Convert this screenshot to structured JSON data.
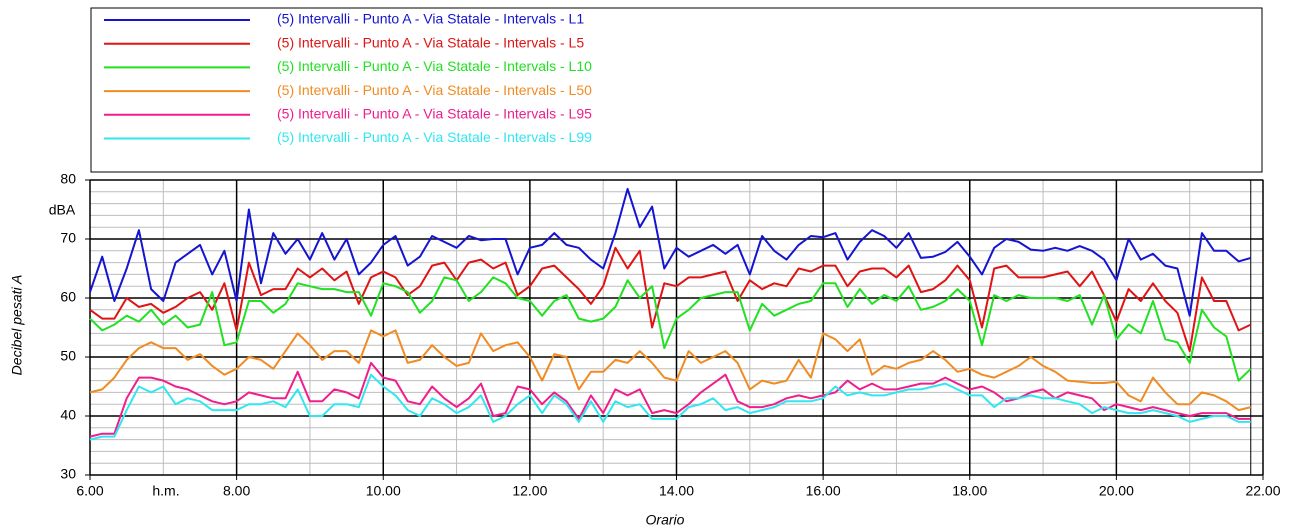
{
  "chart_data": {
    "type": "line",
    "y_label": "Decibel pesati A",
    "x_label": "Orario",
    "y_unit": "dBA",
    "x_unit": "h.m.",
    "xlim": [
      6,
      22
    ],
    "xticks": [
      {
        "value": 6,
        "label": "6.00"
      },
      {
        "value": 8,
        "label": "8.00"
      },
      {
        "value": 10,
        "label": "10.00"
      },
      {
        "value": 12,
        "label": "12.00"
      },
      {
        "value": 14,
        "label": "14.00"
      },
      {
        "value": 16,
        "label": "16.00"
      },
      {
        "value": 18,
        "label": "18.00"
      },
      {
        "value": 20,
        "label": "20.00"
      },
      {
        "value": 22,
        "label": "22.00"
      }
    ],
    "ylim": [
      30,
      80
    ],
    "yticks": [
      30,
      40,
      50,
      60,
      70,
      80
    ],
    "grid": true,
    "legend": "top",
    "x": [
      6,
      6.167,
      6.333,
      6.5,
      6.667,
      6.833,
      7,
      7.167,
      7.333,
      7.5,
      7.667,
      7.833,
      8,
      8.167,
      8.333,
      8.5,
      8.667,
      8.833,
      9,
      9.167,
      9.333,
      9.5,
      9.667,
      9.833,
      10,
      10.167,
      10.333,
      10.5,
      10.667,
      10.833,
      11,
      11.167,
      11.333,
      11.5,
      11.667,
      11.833,
      12,
      12.167,
      12.333,
      12.5,
      12.667,
      12.833,
      13,
      13.167,
      13.333,
      13.5,
      13.667,
      13.833,
      14,
      14.167,
      14.333,
      14.5,
      14.667,
      14.833,
      15,
      15.167,
      15.333,
      15.5,
      15.667,
      15.833,
      16,
      16.167,
      16.333,
      16.5,
      16.667,
      16.833,
      17,
      17.167,
      17.333,
      17.5,
      17.667,
      17.833,
      18,
      18.167,
      18.333,
      18.5,
      18.667,
      18.833,
      19,
      19.167,
      19.333,
      19.5,
      19.667,
      19.833,
      20,
      20.167,
      20.333,
      20.5,
      20.667,
      20.833,
      21,
      21.167,
      21.333,
      21.5,
      21.667,
      21.833
    ],
    "series": [
      {
        "name": "(5) Intervalli - Punto A - Via Statale - Intervals - L1",
        "color": "#1414d2",
        "values": [
          61,
          67,
          59.5,
          65,
          71.5,
          61.5,
          59.5,
          66,
          67.5,
          69,
          64,
          68,
          59.5,
          75,
          62.5,
          71,
          67.5,
          70,
          66.5,
          71,
          66.5,
          70,
          64,
          66,
          69,
          70.5,
          65.5,
          67,
          70.5,
          69.5,
          68.5,
          70.5,
          69.8,
          70,
          70,
          64,
          68.5,
          69,
          71,
          69,
          68.5,
          66.5,
          65,
          71,
          78.5,
          72,
          75.5,
          65,
          68.5,
          67,
          68,
          69,
          67.5,
          69,
          64,
          70.5,
          68,
          66.5,
          69,
          70.5,
          70.3,
          71,
          66.5,
          69.5,
          71.5,
          70.5,
          68.5,
          71,
          66.8,
          67,
          67.8,
          69.5,
          67,
          64,
          68.5,
          70,
          69.5,
          68.2,
          68,
          68.5,
          68,
          68.8,
          68,
          66.5,
          63,
          70,
          66.5,
          67.5,
          65.5,
          65,
          57,
          71,
          68,
          68,
          66.2,
          66.8
        ]
      },
      {
        "name": "(5) Intervalli - Punto A - Via Statale - Intervals - L5",
        "color": "#e01414",
        "values": [
          58,
          56.5,
          56.5,
          60,
          58.5,
          59,
          57.5,
          58.5,
          60,
          61,
          58,
          62.5,
          54.5,
          66,
          60.5,
          61.5,
          61.5,
          65,
          63.5,
          65,
          63,
          64.5,
          59,
          63.5,
          64.5,
          63.5,
          60.5,
          62,
          65.5,
          66,
          63,
          66,
          66.5,
          65,
          66,
          60.5,
          62,
          65,
          65.5,
          63.5,
          61.5,
          59,
          62,
          68.5,
          65,
          68,
          55,
          62.5,
          62,
          63.5,
          63.5,
          64,
          64.5,
          59.5,
          63,
          61.5,
          62.5,
          62,
          65,
          64.5,
          65.5,
          65.5,
          62,
          64.5,
          65,
          65,
          63.5,
          65.5,
          61,
          61.5,
          63,
          65.5,
          63,
          55,
          65,
          65.5,
          63.5,
          63.5,
          63.5,
          64,
          64.5,
          62,
          64.5,
          60.5,
          56,
          61.5,
          59.5,
          62.5,
          59.5,
          57.5,
          51,
          63.5,
          59.5,
          59.5,
          54.5,
          55.5
        ]
      },
      {
        "name": "(5) Intervalli - Punto A - Via Statale - Intervals - L10",
        "color": "#22e022",
        "values": [
          56.5,
          54.5,
          55.5,
          57,
          56,
          58,
          55.5,
          57,
          55,
          55.5,
          61,
          52,
          52.5,
          59.5,
          59.5,
          57.5,
          59,
          62.5,
          62,
          61.5,
          61.5,
          61,
          61,
          57,
          62.5,
          62,
          61,
          57.5,
          59.5,
          63.5,
          63,
          59.5,
          61,
          63.5,
          62.5,
          60,
          59.5,
          57,
          59.5,
          60.5,
          56.5,
          56,
          56.5,
          58.5,
          63,
          60,
          62,
          51.5,
          56.5,
          58,
          60,
          60.5,
          61,
          61,
          54.5,
          59,
          57,
          58,
          59,
          59.5,
          62.5,
          62.5,
          58.5,
          61.5,
          59,
          60.5,
          59.5,
          62,
          58,
          58.5,
          59.5,
          61.5,
          59.5,
          52,
          60.5,
          59.5,
          60.5,
          60,
          60,
          60,
          59.5,
          60.5,
          55.5,
          60.5,
          53,
          55.5,
          54,
          59.5,
          53,
          52.5,
          49,
          58,
          55,
          53.5,
          46,
          48
        ]
      },
      {
        "name": "(5) Intervalli - Punto A - Via Statale - Intervals - L50",
        "color": "#f08c23",
        "values": [
          44,
          44.5,
          46.5,
          49.5,
          51.5,
          52.5,
          51.5,
          51.5,
          49.5,
          50.5,
          48.5,
          47,
          48,
          50,
          49.5,
          48,
          51,
          54,
          52,
          49.5,
          51,
          51,
          49,
          54.5,
          53.5,
          54.5,
          49,
          49.5,
          52,
          50,
          48.5,
          49,
          54,
          51,
          52,
          52.5,
          50,
          46,
          50.5,
          50,
          44.5,
          47.5,
          47.5,
          49.5,
          49,
          51,
          49,
          46.5,
          46,
          51,
          49,
          50,
          51,
          49,
          44.5,
          46,
          45.5,
          46,
          49.5,
          46.5,
          54,
          53,
          51,
          53,
          47,
          48.5,
          48,
          49,
          49.5,
          51,
          49.5,
          47.5,
          48,
          47,
          46.5,
          47.5,
          48.5,
          50,
          48.5,
          47.5,
          46,
          45.8,
          45.6,
          45.6,
          45.8,
          43.5,
          42.5,
          46.5,
          44,
          42,
          42,
          44,
          43.5,
          42.5,
          41,
          41.5
        ]
      },
      {
        "name": "(5) Intervalli - Punto A - Via Statale - Intervals - L95",
        "color": "#f01e8c",
        "values": [
          36.5,
          37,
          37,
          43,
          46.5,
          46.5,
          46,
          45,
          44.5,
          43.5,
          42.5,
          42,
          42.5,
          44,
          43.5,
          43,
          43,
          47.5,
          42.5,
          42.5,
          44.5,
          44,
          43,
          49,
          46.5,
          46,
          42.5,
          42,
          45,
          43,
          41.5,
          43,
          45.5,
          40,
          40.5,
          45,
          44.5,
          42,
          44,
          42.5,
          39.5,
          43.5,
          40.5,
          44.5,
          43.5,
          44.5,
          40.5,
          41,
          40.5,
          42,
          44,
          45.5,
          47,
          42.5,
          41.5,
          41.5,
          42,
          43,
          43.5,
          43,
          43.5,
          44,
          46,
          44.5,
          45.5,
          44.5,
          44.5,
          45,
          45.5,
          45.5,
          46.5,
          45.5,
          44.5,
          45,
          44,
          42.5,
          43,
          44,
          44.5,
          43,
          44,
          43.5,
          43,
          41,
          42,
          41.5,
          41,
          41.5,
          41,
          40.5,
          40,
          40.5,
          40.5,
          40.5,
          39.5,
          39.5
        ]
      },
      {
        "name": "(5) Intervalli - Punto A - Via Statale - Intervals - L99",
        "color": "#32e6f0",
        "values": [
          36,
          36.5,
          36.5,
          41,
          45,
          44,
          45,
          42,
          43,
          42.5,
          41,
          41,
          41,
          42,
          42,
          42.5,
          41.5,
          44.5,
          40,
          40,
          42,
          42,
          41.5,
          47,
          45,
          43.5,
          41,
          40,
          43,
          42,
          40.5,
          41.5,
          43.5,
          39,
          40,
          42,
          43.5,
          40.5,
          43.5,
          42,
          39,
          42.5,
          39,
          42.5,
          41.5,
          42,
          39.5,
          39.5,
          39.5,
          41.5,
          42,
          43,
          41,
          41.5,
          40.5,
          41,
          41.5,
          42.5,
          42.5,
          42.5,
          43,
          45,
          43.5,
          44,
          43.5,
          43.5,
          44,
          44.5,
          44.5,
          45,
          45.5,
          44.5,
          43.5,
          43.5,
          41.5,
          43,
          43,
          43.5,
          43,
          43,
          42.5,
          42,
          40.5,
          41.5,
          41,
          40.5,
          40.5,
          41,
          40.5,
          40,
          39,
          39.5,
          40,
          40,
          39,
          39
        ]
      }
    ]
  }
}
